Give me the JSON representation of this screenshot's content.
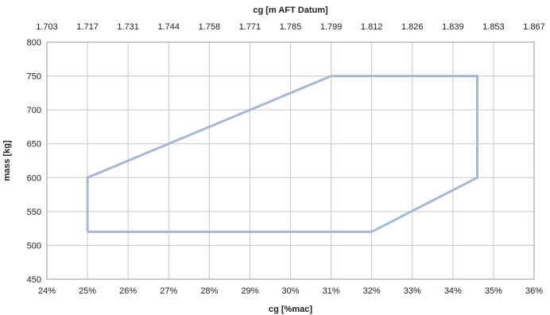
{
  "chart_data": {
    "type": "line",
    "title": "",
    "xlabel": "cg [%mac]",
    "ylabel": "mass [kg]",
    "x2label": "cg [m AFT Datum]",
    "xlim": [
      24,
      36
    ],
    "ylim": [
      450,
      800
    ],
    "x_ticks": [
      "24%",
      "25%",
      "26%",
      "27%",
      "28%",
      "29%",
      "30%",
      "31%",
      "32%",
      "33%",
      "34%",
      "35%",
      "36%"
    ],
    "y_ticks": [
      "450",
      "500",
      "550",
      "600",
      "650",
      "700",
      "750",
      "800"
    ],
    "x2_ticks": [
      "1.703",
      "1.717",
      "1.731",
      "1.744",
      "1.758",
      "1.771",
      "1.785",
      "1.799",
      "1.812",
      "1.826",
      "1.839",
      "1.853",
      "1.867"
    ],
    "grid": true,
    "series": [
      {
        "color": "#a6b8d6",
        "points": [
          {
            "x": 25,
            "y": 520
          },
          {
            "x": 25,
            "y": 600
          },
          {
            "x": 31,
            "y": 750
          },
          {
            "x": 34.6,
            "y": 750
          },
          {
            "x": 34.6,
            "y": 600
          },
          {
            "x": 32,
            "y": 520
          },
          {
            "x": 25,
            "y": 520
          }
        ]
      }
    ]
  }
}
